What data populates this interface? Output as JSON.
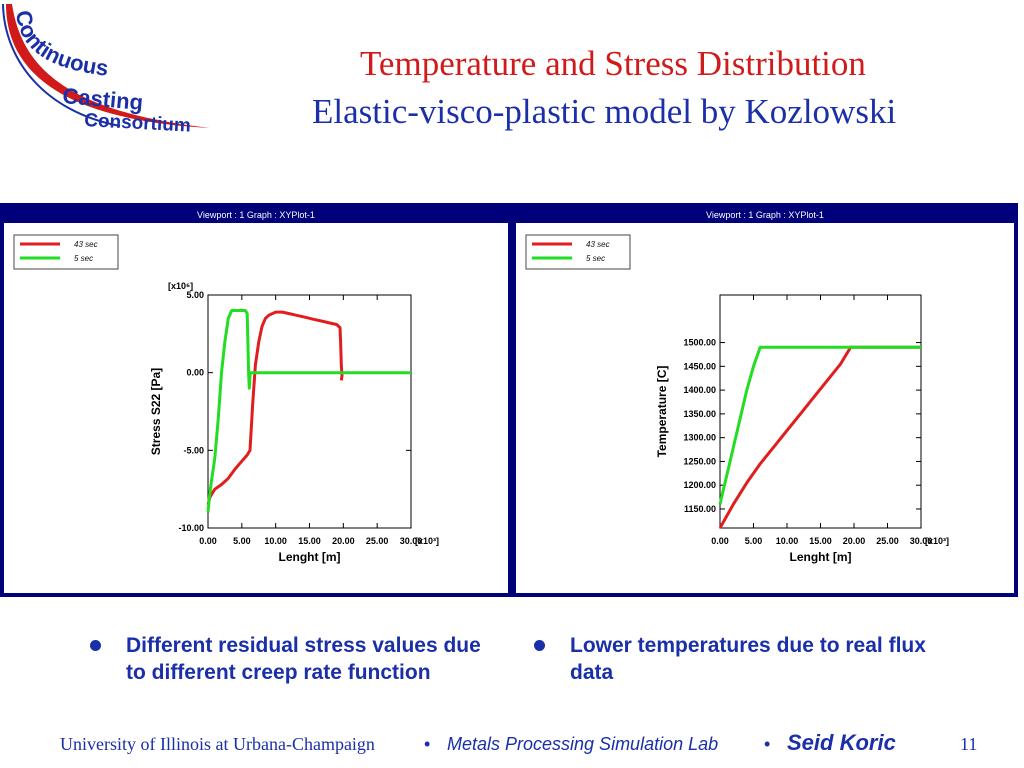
{
  "logo": {
    "line1": "Continuous",
    "line2": "Casting",
    "line3": "Consortium"
  },
  "title": {
    "line1": "Temperature and Stress Distribution",
    "line2": "Elastic-visco-plastic model by Kozlowski"
  },
  "colors": {
    "red_series": "#e01e1e",
    "green_series": "#22dd22",
    "frame": "#00007a"
  },
  "viewport_label": "Viewport : 1     Graph : XYPlot-1",
  "chart_data": [
    {
      "type": "line",
      "xlabel": "Lenght [m]",
      "ylabel": "Stress S22 [Pa]",
      "x_multiplier": "[x10³]",
      "y_multiplier": "[x10⁶]",
      "xlim": [
        0,
        30
      ],
      "ylim": [
        -10,
        5
      ],
      "x_ticks": [
        "0.00",
        "5.00",
        "10.00",
        "15.00",
        "20.00",
        "25.00",
        "30.00"
      ],
      "y_ticks": [
        "-10.00",
        "-5.00",
        "0.00",
        "5.00"
      ],
      "x_tick_values": [
        0,
        5,
        10,
        15,
        20,
        25,
        30
      ],
      "y_tick_values": [
        -10,
        -5,
        0,
        5
      ],
      "series": [
        {
          "name": "43  sec",
          "color": "#e01e1e",
          "x": [
            0.0,
            0.3,
            1.0,
            2.0,
            3.0,
            4.0,
            5.0,
            5.8,
            6.2,
            6.6,
            7.0,
            7.5,
            8.0,
            8.5,
            9.0,
            9.5,
            10.0,
            11.0,
            12.0,
            13.0,
            14.0,
            15.0,
            16.0,
            17.0,
            18.0,
            19.0,
            19.5,
            19.6,
            19.7,
            19.8,
            19.7
          ],
          "y": [
            -8.5,
            -8.0,
            -7.5,
            -7.2,
            -6.8,
            -6.2,
            -5.7,
            -5.3,
            -5.0,
            -2.0,
            0.5,
            2.0,
            3.0,
            3.5,
            3.7,
            3.8,
            3.9,
            3.9,
            3.8,
            3.7,
            3.6,
            3.5,
            3.4,
            3.3,
            3.2,
            3.1,
            2.9,
            2.0,
            0.5,
            -0.2,
            -0.5
          ]
        },
        {
          "name": "5  sec",
          "color": "#22dd22",
          "x": [
            0.0,
            0.2,
            0.5,
            1.0,
            1.5,
            2.0,
            2.5,
            3.0,
            3.5,
            4.0,
            5.0,
            5.5,
            5.8,
            6.0,
            6.1,
            6.2,
            6.3,
            7.0,
            10.0,
            20.0,
            30.0
          ],
          "y": [
            -9.0,
            -8.0,
            -7.0,
            -5.5,
            -3.0,
            0.0,
            2.0,
            3.5,
            4.0,
            4.0,
            4.0,
            4.0,
            3.8,
            0.0,
            -1.0,
            -0.2,
            0.0,
            0.0,
            0.0,
            0.0,
            0.0
          ]
        }
      ]
    },
    {
      "type": "line",
      "xlabel": "Lenght [m]",
      "ylabel": "Temperature [C]",
      "x_multiplier": "[x10³]",
      "xlim": [
        0,
        30
      ],
      "ylim": [
        1110,
        1600
      ],
      "x_ticks": [
        "0.00",
        "5.00",
        "10.00",
        "15.00",
        "20.00",
        "25.00",
        "30.00"
      ],
      "y_ticks": [
        "1150.00",
        "1200.00",
        "1250.00",
        "1300.00",
        "1350.00",
        "1400.00",
        "1450.00",
        "1500.00"
      ],
      "x_tick_values": [
        0,
        5,
        10,
        15,
        20,
        25,
        30
      ],
      "y_tick_values": [
        1150,
        1200,
        1250,
        1300,
        1350,
        1400,
        1450,
        1500
      ],
      "series": [
        {
          "name": "43  sec",
          "color": "#e01e1e",
          "x": [
            0,
            2,
            4,
            6,
            8,
            10,
            12,
            14,
            16,
            18,
            19.5,
            20,
            25,
            30
          ],
          "y": [
            1110,
            1160,
            1205,
            1245,
            1280,
            1315,
            1350,
            1385,
            1420,
            1455,
            1490,
            1490,
            1490,
            1490
          ]
        },
        {
          "name": "5  sec",
          "color": "#22dd22",
          "x": [
            0,
            0.5,
            1,
            2,
            3,
            4,
            5,
            6,
            7,
            10,
            20,
            30
          ],
          "y": [
            1160,
            1190,
            1220,
            1280,
            1340,
            1400,
            1450,
            1490,
            1490,
            1490,
            1490,
            1490
          ]
        }
      ]
    }
  ],
  "bullets": {
    "left": "Different residual stress values due to different creep rate function",
    "right": "Lower temperatures due to real flux data"
  },
  "footer": {
    "university": "University of Illinois at Urbana-Champaign",
    "separator": "•",
    "lab": "Metals Processing Simulation Lab",
    "author": "Seid Koric",
    "page": "11"
  }
}
